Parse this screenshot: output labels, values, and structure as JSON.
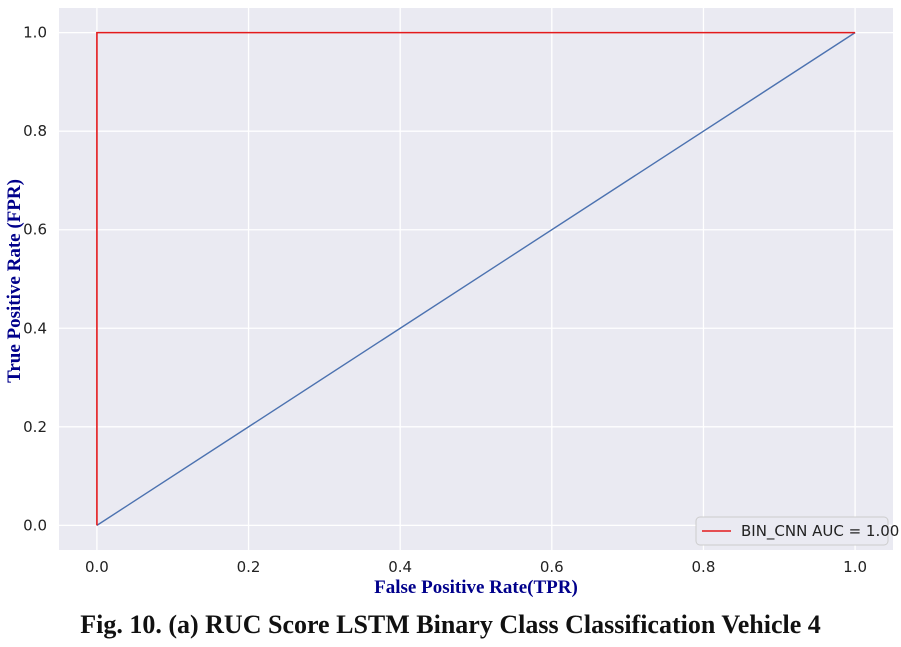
{
  "caption": "Fig. 10. (a) RUC Score LSTM Binary Class Classification Vehicle 4",
  "colors": {
    "background": "#eaeaf2",
    "grid": "#ffffff",
    "roc_curve": "#e31a1c",
    "diagonal": "#4c72b0",
    "axis_label": "#00008b"
  },
  "chart_data": {
    "type": "line",
    "title": "",
    "xlabel": "False Positive Rate(TPR)",
    "ylabel": "True Positive Rate (FPR)",
    "xlim": [
      -0.05,
      1.05
    ],
    "ylim": [
      -0.05,
      1.05
    ],
    "xticks": [
      0.0,
      0.2,
      0.4,
      0.6,
      0.8,
      1.0
    ],
    "xtick_labels": [
      "0.0",
      "0.2",
      "0.4",
      "0.6",
      "0.8",
      "1.0"
    ],
    "yticks": [
      0.0,
      0.2,
      0.4,
      0.6,
      0.8,
      1.0
    ],
    "ytick_labels": [
      "0.0",
      "0.2",
      "0.4",
      "0.6",
      "0.8",
      "1.0"
    ],
    "grid": true,
    "legend_position": "bottom-right",
    "series": [
      {
        "name": "BIN_CNN AUC = 1.00",
        "color": "#e31a1c",
        "x": [
          0.0,
          0.0,
          1.0
        ],
        "y": [
          0.0,
          1.0,
          1.0
        ]
      },
      {
        "color": "#4c72b0",
        "x": [
          0.0,
          1.0
        ],
        "y": [
          0.0,
          1.0
        ]
      }
    ]
  }
}
